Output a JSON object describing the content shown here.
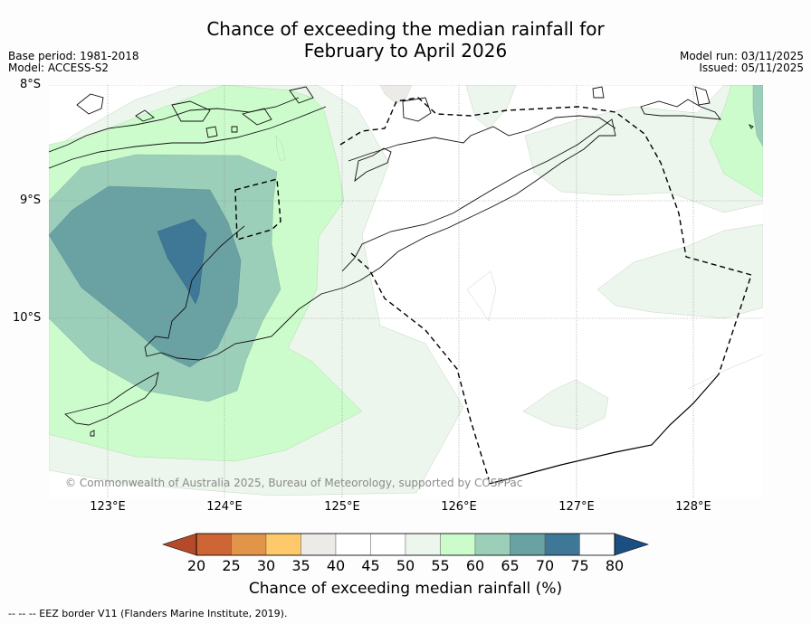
{
  "title_line1": "Chance of exceeding the median rainfall for",
  "title_line2": "February to April 2026",
  "meta_left": {
    "base_period": "Base period: 1981-2018",
    "model": "Model: ACCESS-S2"
  },
  "meta_right": {
    "model_run": "Model run: 03/11/2025",
    "issued": "Issued: 05/11/2025"
  },
  "latitude_labels": [
    "8°S",
    "9°S",
    "10°S"
  ],
  "longitude_labels": [
    "123°E",
    "124°E",
    "125°E",
    "126°E",
    "127°E",
    "128°E"
  ],
  "copyright": "© Commonwealth of Australia 2025, Bureau of Meteorology, supported by COSPPac",
  "colorbar": {
    "ticks": [
      "20",
      "25",
      "30",
      "35",
      "40",
      "45",
      "50",
      "55",
      "60",
      "65",
      "70",
      "75",
      "80"
    ],
    "colors": [
      "#b44a2a",
      "#cd6535",
      "#e29448",
      "#fdc96a",
      "#ecebe8",
      "#ffffff",
      "#ffffff",
      "#ecf6ec",
      "#cdfccc",
      "#9ccfba",
      "#6aa2a4",
      "#3f7797",
      "#1b4e82"
    ],
    "title": "Chance of exceeding median rainfall (%)"
  },
  "footnote": "--  --  -- EEZ border V11 (Flanders Marine Institute, 2019)."
}
